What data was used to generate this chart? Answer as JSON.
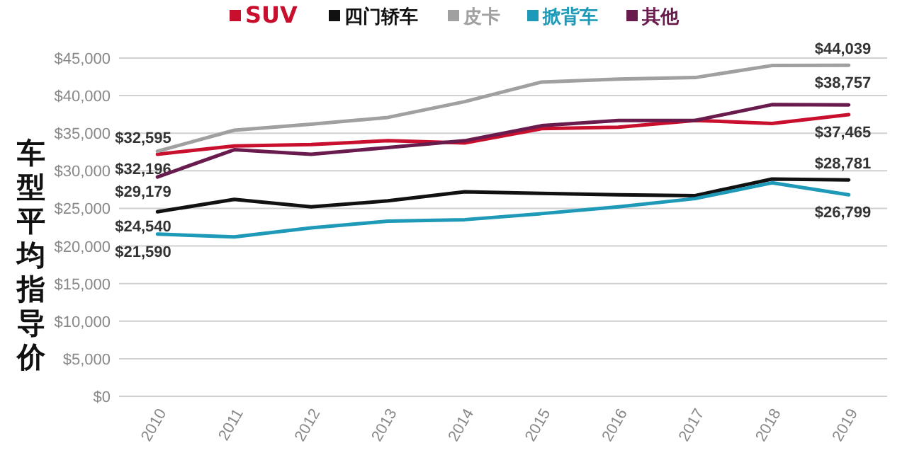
{
  "chart_data": {
    "type": "line",
    "ylabel": "车型平均指导价",
    "categories": [
      "2010",
      "2011",
      "2012",
      "2013",
      "2014",
      "2015",
      "2016",
      "2017",
      "2018",
      "2019"
    ],
    "series": [
      {
        "name": "SUV",
        "color": "#c8102e",
        "values": [
          32196,
          33300,
          33500,
          34000,
          33700,
          35600,
          35800,
          36700,
          36300,
          37465
        ],
        "value_labels": [
          "$32,196",
          null,
          null,
          null,
          null,
          null,
          null,
          null,
          null,
          "$37,465"
        ]
      },
      {
        "name": "四门轿车",
        "color": "#111111",
        "values": [
          24540,
          26200,
          25200,
          26000,
          27200,
          27000,
          26800,
          26700,
          28900,
          28781
        ],
        "value_labels": [
          "$24,540",
          null,
          null,
          null,
          null,
          null,
          null,
          null,
          null,
          "$28,781"
        ]
      },
      {
        "name": "皮卡",
        "color": "#a0a0a0",
        "values": [
          32595,
          35400,
          36200,
          37100,
          39200,
          41800,
          42200,
          42400,
          44000,
          44039
        ],
        "value_labels": [
          "$32,595",
          null,
          null,
          null,
          null,
          null,
          null,
          null,
          null,
          "$44,039"
        ]
      },
      {
        "name": "掀背车",
        "color": "#1e9ab8",
        "values": [
          21590,
          21200,
          22400,
          23300,
          23500,
          24300,
          25200,
          26300,
          28400,
          26799
        ],
        "value_labels": [
          "$21,590",
          null,
          null,
          null,
          null,
          null,
          null,
          null,
          null,
          "$26,799"
        ]
      },
      {
        "name": "其他",
        "color": "#6a1b4d",
        "values": [
          29179,
          32800,
          32200,
          33100,
          34000,
          36000,
          36700,
          36700,
          38800,
          38757
        ],
        "value_labels": [
          "$29,179",
          null,
          null,
          null,
          null,
          null,
          null,
          null,
          null,
          "$38,757"
        ]
      }
    ],
    "ylim": [
      0,
      45000
    ],
    "yticks": [
      {
        "value": 0,
        "label": "$0"
      },
      {
        "value": 5000,
        "label": "$5,000"
      },
      {
        "value": 10000,
        "label": "$10,000"
      },
      {
        "value": 15000,
        "label": "$15,000"
      },
      {
        "value": 20000,
        "label": "$20,000"
      },
      {
        "value": 25000,
        "label": "$25,000"
      },
      {
        "value": 30000,
        "label": "$30,000"
      },
      {
        "value": 35000,
        "label": "$35,000"
      },
      {
        "value": 40000,
        "label": "$40,000"
      },
      {
        "value": 45000,
        "label": "$45,000"
      }
    ],
    "grid": "y",
    "legend": "top",
    "marker": "none",
    "line_style": "solid"
  }
}
